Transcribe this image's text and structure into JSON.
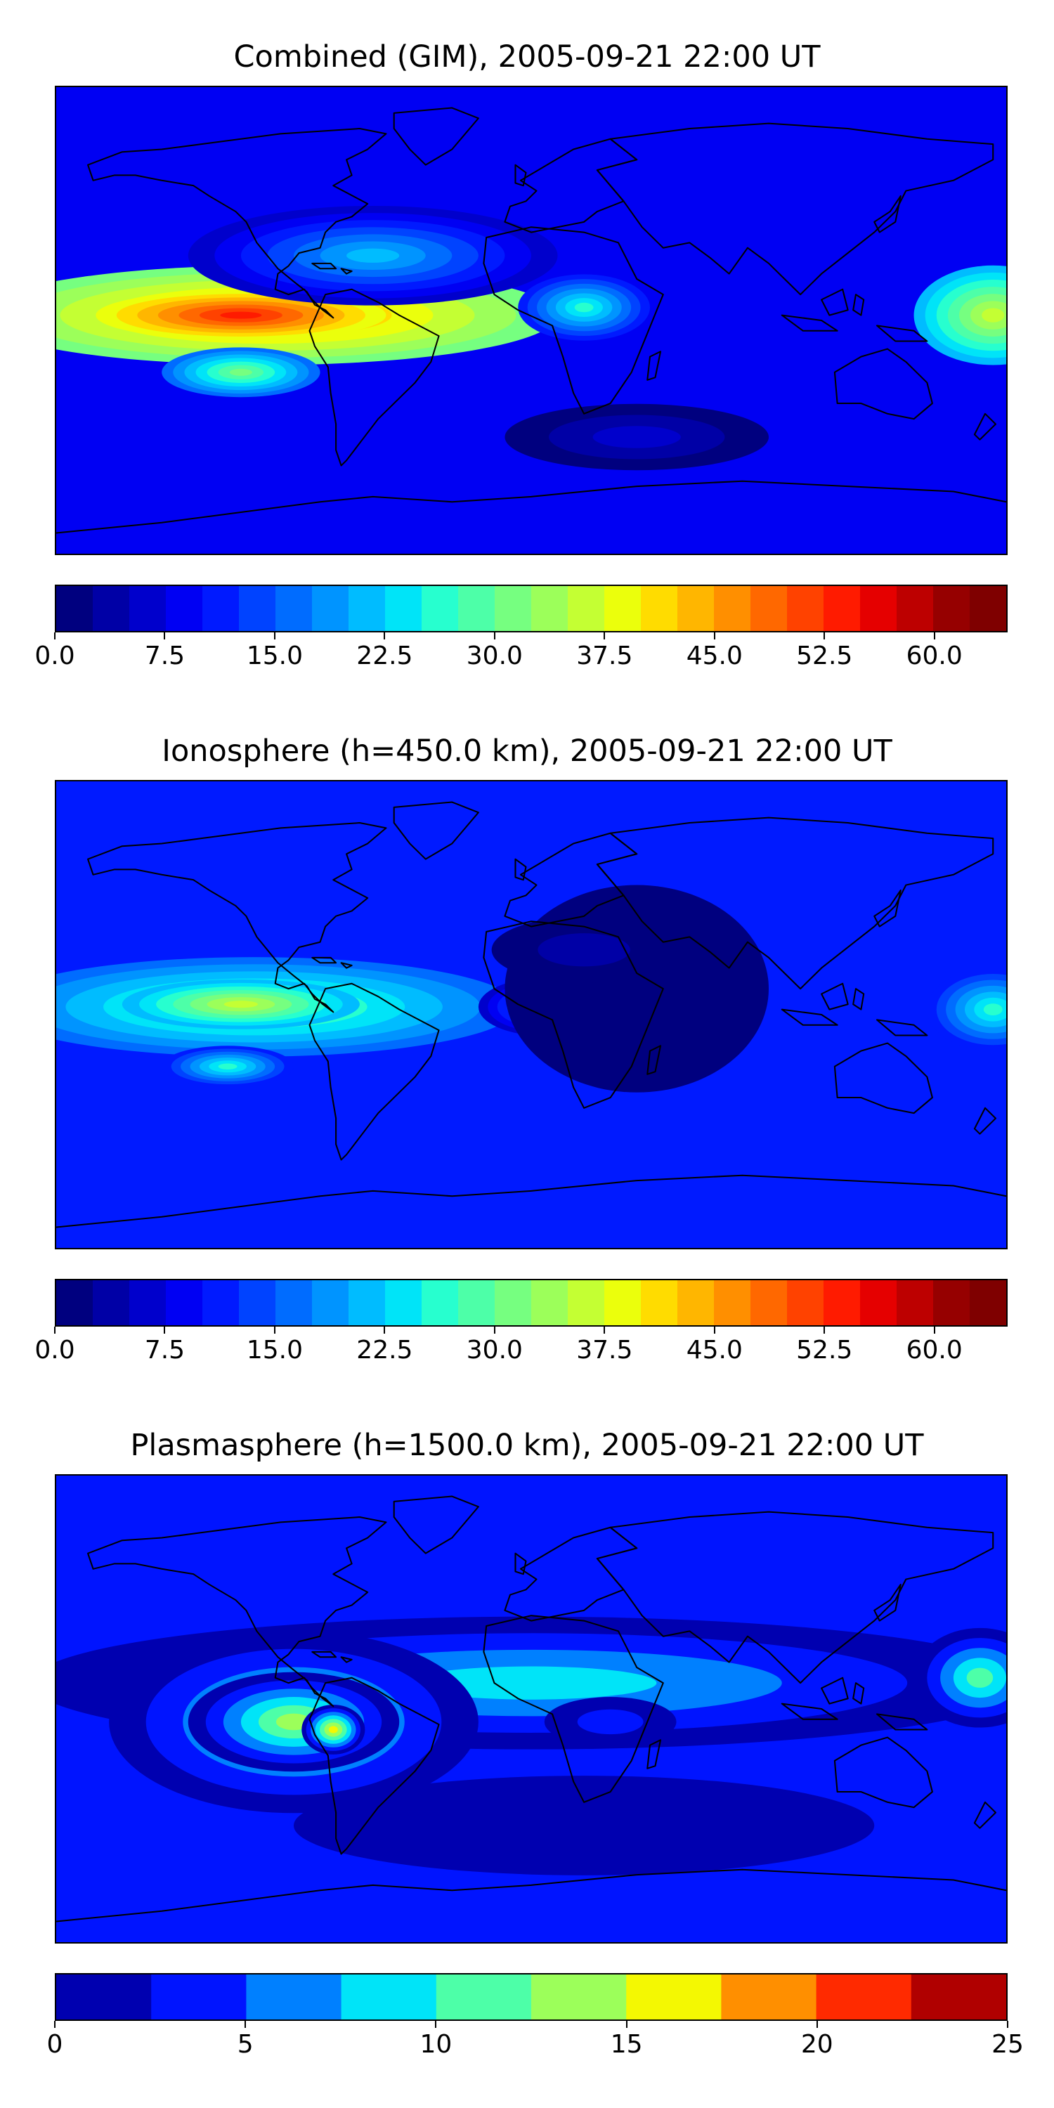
{
  "panels": [
    {
      "id": "combined",
      "title": "Combined (GIM), 2005-09-21 22:00 UT",
      "colorbar": {
        "min": 0,
        "max": 65,
        "step": 2.5,
        "colors": [
          "#00007f",
          "#0000a6",
          "#0000cc",
          "#0000f3",
          "#001aff",
          "#0043ff",
          "#006cff",
          "#0094ff",
          "#00bcff",
          "#00e4f8",
          "#27ffcf",
          "#4dffa8",
          "#76ff80",
          "#9cff5a",
          "#c4ff33",
          "#ebff0c",
          "#ffdc00",
          "#ffb600",
          "#ff8f00",
          "#ff6800",
          "#ff4200",
          "#ff1b00",
          "#e50000",
          "#bd0000",
          "#960000",
          "#7f0000"
        ],
        "tick_values": [
          0,
          7.5,
          15,
          22.5,
          30,
          37.5,
          45,
          52.5,
          60
        ],
        "tick_labels": [
          "0.0",
          "7.5",
          "15.0",
          "22.5",
          "30.0",
          "37.5",
          "45.0",
          "52.5",
          "60.0"
        ]
      },
      "blobs": [
        {
          "lon": -100,
          "lat": 2,
          "rx": 110,
          "ry": 12,
          "value": 47
        },
        {
          "lon": -110,
          "lat": 2,
          "rx": 55,
          "ry": 6,
          "value": 53
        },
        {
          "lon": -110,
          "lat": -20,
          "rx": 30,
          "ry": 6,
          "value": 30
        },
        {
          "lon": 20,
          "lat": 5,
          "rx": 25,
          "ry": 8,
          "value": 25
        },
        {
          "lon": 175,
          "lat": 2,
          "rx": 30,
          "ry": 12,
          "value": 35
        },
        {
          "lon": -60,
          "lat": 25,
          "rx": 70,
          "ry": 12,
          "value": 20
        },
        {
          "lon": 40,
          "lat": -45,
          "rx": 50,
          "ry": 8,
          "value": 5
        }
      ]
    },
    {
      "id": "ionosphere",
      "title": "Ionosphere  (h=450.0 km), 2005-09-21 22:00 UT",
      "colorbar": {
        "min": 0,
        "max": 65,
        "step": 2.5,
        "colors": [
          "#00007f",
          "#0000a6",
          "#0000cc",
          "#0000f3",
          "#001aff",
          "#0043ff",
          "#006cff",
          "#0094ff",
          "#00bcff",
          "#00e4f8",
          "#27ffcf",
          "#4dffa8",
          "#76ff80",
          "#9cff5a",
          "#c4ff33",
          "#ebff0c",
          "#ffdc00",
          "#ffb600",
          "#ff8f00",
          "#ff6800",
          "#ff4200",
          "#ff1b00",
          "#e50000",
          "#bd0000",
          "#960000",
          "#7f0000"
        ],
        "tick_values": [
          0,
          7.5,
          15,
          22.5,
          30,
          37.5,
          45,
          52.5,
          60
        ],
        "tick_labels": [
          "0.0",
          "7.5",
          "15.0",
          "22.5",
          "30.0",
          "37.5",
          "45.0",
          "52.5",
          "60.0"
        ]
      },
      "blobs": [
        {
          "lon": -105,
          "lat": 3,
          "rx": 100,
          "ry": 12,
          "value": 32
        },
        {
          "lon": -110,
          "lat": 4,
          "rx": 45,
          "ry": 6,
          "value": 37
        },
        {
          "lon": -115,
          "lat": -20,
          "rx": 25,
          "ry": 5,
          "value": 25
        },
        {
          "lon": 5,
          "lat": 3,
          "rx": 25,
          "ry": 7,
          "value": 22
        },
        {
          "lon": 175,
          "lat": 2,
          "rx": 25,
          "ry": 10,
          "value": 27
        },
        {
          "lon": 40,
          "lat": 10,
          "rx": 50,
          "ry": 25,
          "value": 1
        },
        {
          "lon": 20,
          "lat": 25,
          "rx": 35,
          "ry": 8,
          "value": 3
        }
      ]
    },
    {
      "id": "plasmasphere",
      "title": "Plasmasphere (h=1500.0 km), 2005-09-21 22:00 UT",
      "colorbar": {
        "min": 0,
        "max": 25,
        "step": 2.5,
        "colors": [
          "#0000b0",
          "#0014ff",
          "#0080ff",
          "#00e4f8",
          "#4dffa8",
          "#9cff5a",
          "#f4f802",
          "#ff8f00",
          "#ff2a00",
          "#b00000"
        ],
        "tick_values": [
          0,
          5,
          10,
          15,
          20,
          25
        ],
        "tick_labels": [
          "0",
          "5",
          "10",
          "15",
          "20",
          "25"
        ]
      },
      "blobs": [
        {
          "lon": 0,
          "lat": 10,
          "rx": 190,
          "ry": 16,
          "value": 9
        },
        {
          "lon": -90,
          "lat": -5,
          "rx": 70,
          "ry": 22,
          "value": 11
        },
        {
          "lon": -90,
          "lat": -5,
          "rx": 40,
          "ry": 12,
          "value": 14
        },
        {
          "lon": -75,
          "lat": -8,
          "rx": 12,
          "ry": 6,
          "value": 16
        },
        {
          "lon": 170,
          "lat": 12,
          "rx": 25,
          "ry": 12,
          "value": 11
        },
        {
          "lon": 30,
          "lat": -5,
          "rx": 25,
          "ry": 6,
          "value": 4
        },
        {
          "lon": 20,
          "lat": -45,
          "rx": 110,
          "ry": 12,
          "value": 1
        }
      ]
    }
  ]
}
